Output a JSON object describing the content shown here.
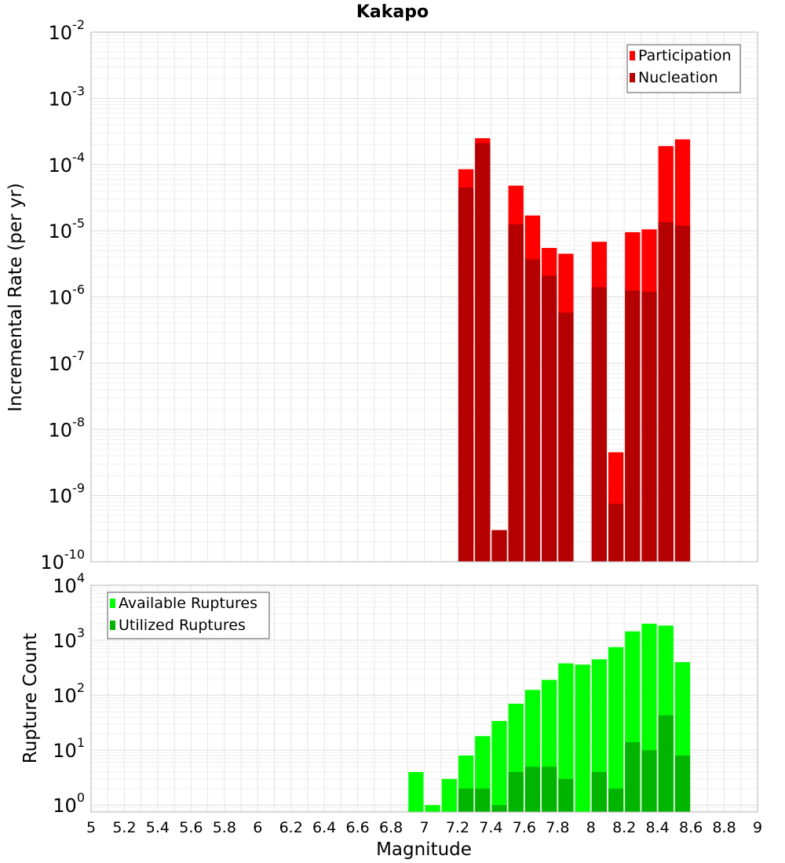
{
  "title": "Kakapo",
  "xlabel": "Magnitude",
  "x_ticks": [
    "5",
    "5.2",
    "5.4",
    "5.6",
    "5.8",
    "6",
    "6.2",
    "6.4",
    "6.6",
    "6.8",
    "7",
    "7.2",
    "7.4",
    "7.6",
    "7.8",
    "8",
    "8.2",
    "8.4",
    "8.6",
    "8.8",
    "9"
  ],
  "colors": {
    "participation": "#ff0000",
    "nucleation": "#b40000",
    "available": "#00ff00",
    "utilized": "#00b400",
    "grid": "#e6e6e6",
    "frame": "#b4b4b4"
  },
  "chart_data": [
    {
      "type": "bar",
      "title": "Kakapo",
      "xlabel": "",
      "ylabel": "Incremental Rate (per yr)",
      "yscale": "log",
      "ylim": [
        1e-10,
        0.01
      ],
      "xlim": [
        5,
        9
      ],
      "bin_width": 0.1,
      "y_ticks": [
        {
          "base": "10",
          "exp": "-10"
        },
        {
          "base": "10",
          "exp": "-9"
        },
        {
          "base": "10",
          "exp": "-8"
        },
        {
          "base": "10",
          "exp": "-7"
        },
        {
          "base": "10",
          "exp": "-6"
        },
        {
          "base": "10",
          "exp": "-5"
        },
        {
          "base": "10",
          "exp": "-4"
        },
        {
          "base": "10",
          "exp": "-3"
        },
        {
          "base": "10",
          "exp": "-2"
        }
      ],
      "legend_position": "top-right",
      "x": [
        7.25,
        7.35,
        7.45,
        7.55,
        7.65,
        7.75,
        7.85,
        8.05,
        8.15,
        8.25,
        8.35,
        8.45,
        8.55
      ],
      "series": [
        {
          "name": "Participation",
          "values": [
            8.5e-05,
            0.00025,
            3e-10,
            4.8e-05,
            1.7e-05,
            5.5e-06,
            4.5e-06,
            6.8e-06,
            4.5e-09,
            9.5e-06,
            1.05e-05,
            0.00019,
            0.00024
          ]
        },
        {
          "name": "Nucleation",
          "values": [
            4.5e-05,
            0.00021,
            3e-10,
            1.25e-05,
            3.7e-06,
            2.1e-06,
            5.8e-07,
            1.4e-06,
            7.5e-10,
            1.25e-06,
            1.2e-06,
            1.35e-05,
            1.2e-05
          ]
        }
      ]
    },
    {
      "type": "bar",
      "title": "",
      "xlabel": "Magnitude",
      "ylabel": "Rupture Count",
      "yscale": "log",
      "ylim": [
        0.75,
        10000
      ],
      "xlim": [
        5,
        9
      ],
      "bin_width": 0.1,
      "y_ticks": [
        {
          "base": "10",
          "exp": "0"
        },
        {
          "base": "10",
          "exp": "1"
        },
        {
          "base": "10",
          "exp": "2"
        },
        {
          "base": "10",
          "exp": "3"
        },
        {
          "base": "10",
          "exp": "4"
        }
      ],
      "legend_position": "top-left",
      "x": [
        6.95,
        7.05,
        7.15,
        7.25,
        7.35,
        7.45,
        7.55,
        7.65,
        7.75,
        7.85,
        7.95,
        8.05,
        8.15,
        8.25,
        8.35,
        8.45,
        8.55
      ],
      "series": [
        {
          "name": "Available Ruptures",
          "values": [
            4,
            1,
            3,
            8,
            18,
            34,
            70,
            125,
            190,
            380,
            360,
            450,
            750,
            1450,
            2000,
            1850,
            400
          ]
        },
        {
          "name": "Utilized Ruptures",
          "values": [
            0,
            0,
            0,
            2,
            2,
            1,
            4,
            5,
            5,
            3,
            0,
            4,
            2,
            14,
            10,
            43,
            8
          ]
        }
      ]
    }
  ]
}
